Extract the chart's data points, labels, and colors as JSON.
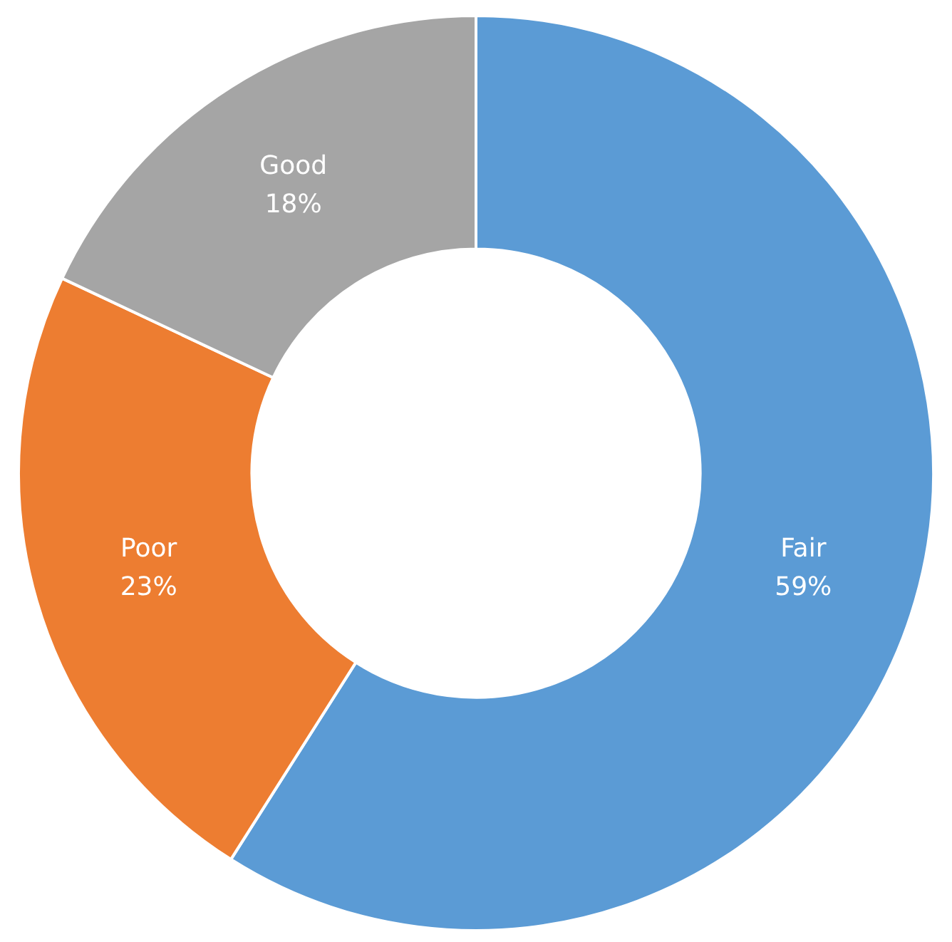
{
  "chart_data": {
    "type": "donut",
    "categories": [
      "Fair",
      "Poor",
      "Good"
    ],
    "values": [
      59,
      23,
      18
    ],
    "value_labels": [
      "59%",
      "23%",
      "18%"
    ],
    "colors": [
      "#5b9bd5",
      "#ed7d31",
      "#a5a5a5"
    ]
  }
}
